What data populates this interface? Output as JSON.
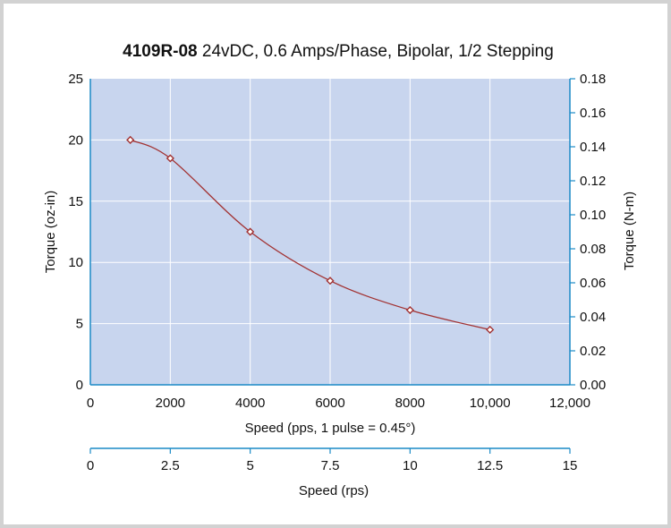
{
  "chart_data": {
    "type": "line",
    "title_bold": "4109R-08",
    "title_rest": " 24vDC, 0.6 Amps/Phase, Bipolar, 1/2 Stepping",
    "xlabel": "Speed (pps, 1 pulse = 0.45°)",
    "ylabel": "Torque (oz-in)",
    "y2label": "Torque (N-m)",
    "x2label": "Speed (rps)",
    "xlim": [
      0,
      12000
    ],
    "ylim": [
      0,
      25
    ],
    "y2lim": [
      0,
      0.18
    ],
    "x2lim": [
      0,
      15
    ],
    "x_ticks": [
      "0",
      "2000",
      "4000",
      "6000",
      "8000",
      "10,000",
      "12,000"
    ],
    "y_ticks": [
      "0",
      "5",
      "10",
      "15",
      "20",
      "25"
    ],
    "y2_ticks": [
      "0.00",
      "0.02",
      "0.04",
      "0.06",
      "0.08",
      "0.10",
      "0.12",
      "0.14",
      "0.16",
      "0.18"
    ],
    "x2_ticks": [
      "0",
      "2.5",
      "5",
      "7.5",
      "10",
      "12.5",
      "15"
    ],
    "grid": true,
    "series": [
      {
        "x": [
          1000,
          2000,
          4000,
          6000,
          8000,
          10000
        ],
        "y": [
          20.0,
          18.5,
          12.5,
          8.5,
          6.1,
          4.5
        ]
      }
    ],
    "colors": {
      "plot_bg": "#c8d5ee",
      "axis": "#1a8ac6",
      "grid": "#ffffff",
      "line": "#a23232"
    }
  }
}
